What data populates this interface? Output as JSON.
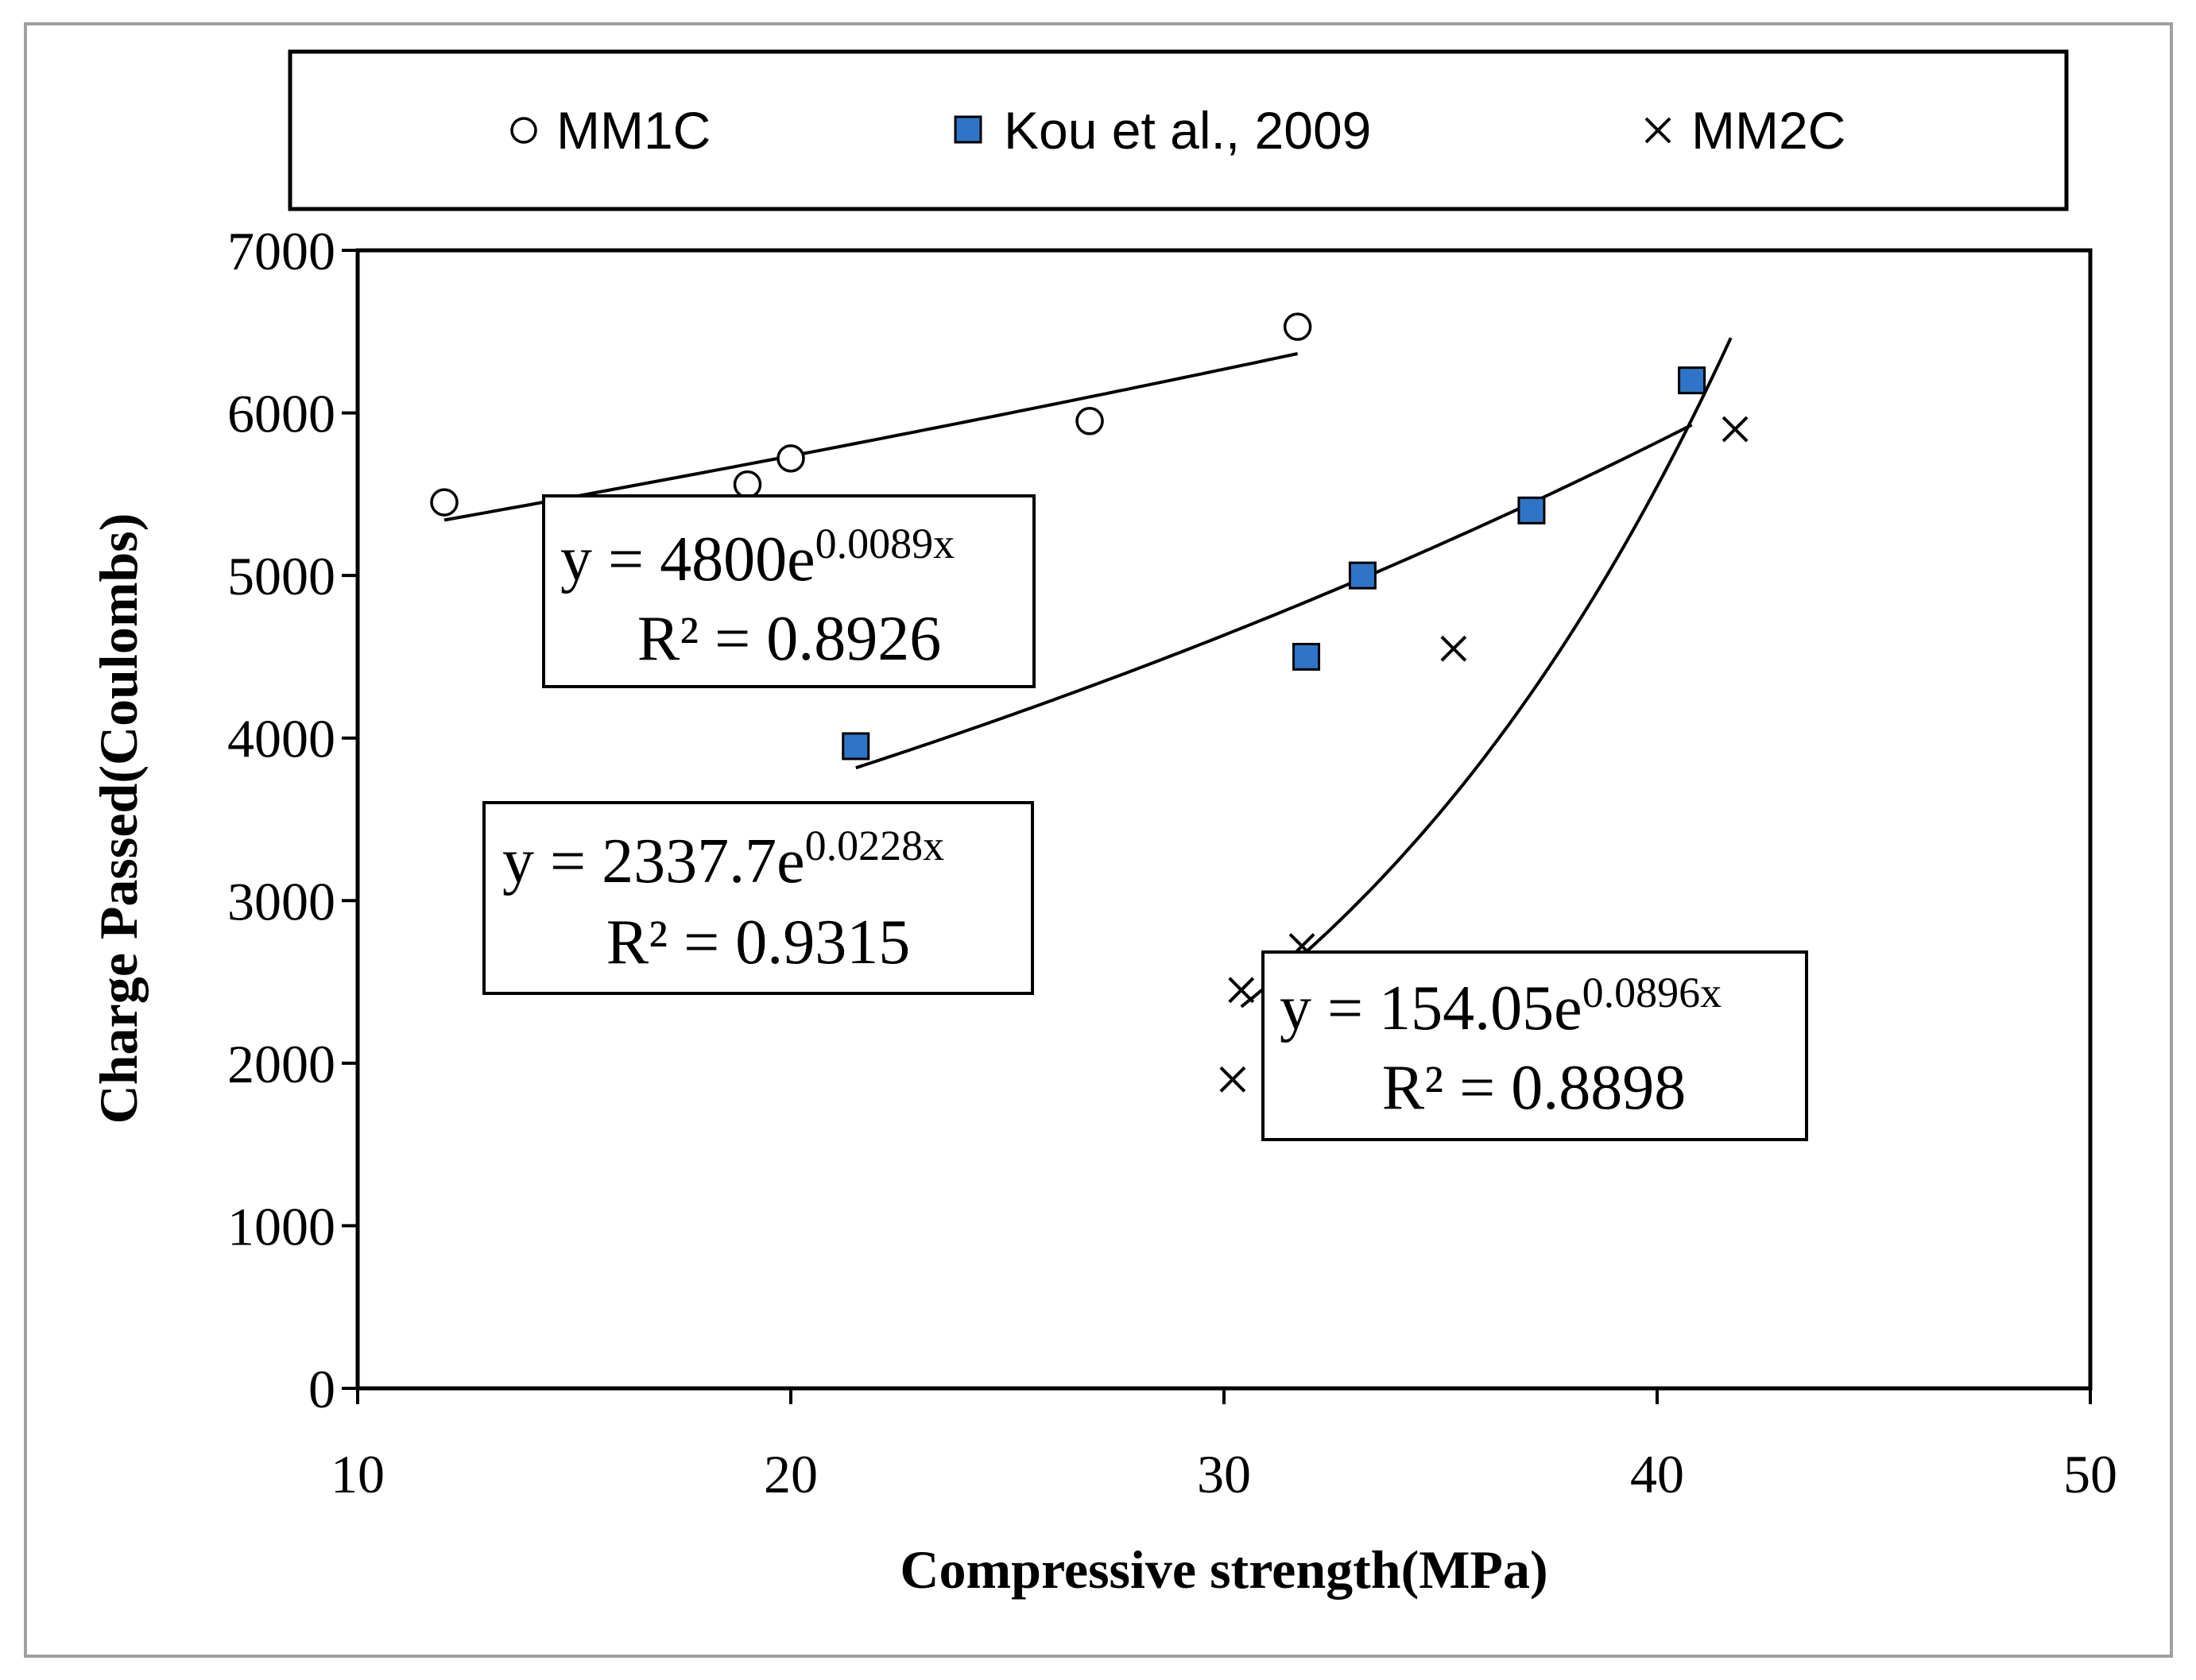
{
  "chart_data": {
    "type": "scatter",
    "xlabel": "Compressive strength(MPa)",
    "ylabel": "Charge Passed(Coulombs)",
    "xlim": [
      10,
      50
    ],
    "ylim": [
      0,
      7000
    ],
    "xticks": [
      10,
      20,
      30,
      40,
      50
    ],
    "yticks": [
      0,
      1000,
      2000,
      3000,
      4000,
      5000,
      6000,
      7000
    ],
    "grid": false,
    "legend_position": "top",
    "series": [
      {
        "name": "MM1C",
        "marker": "open-circle",
        "color": "#000000",
        "points": [
          [
            12,
            5450
          ],
          [
            19,
            5560
          ],
          [
            20,
            5720
          ],
          [
            26.9,
            5950
          ],
          [
            31.7,
            6530
          ]
        ],
        "trendline": {
          "a": 4800,
          "b": 0.0089,
          "x_range": [
            12,
            31.7
          ]
        },
        "equation": {
          "base": "y = 4800e",
          "exponent": "0.0089x",
          "r2": "R² = 0.8926"
        }
      },
      {
        "name": "Kou et al., 2009",
        "marker": "filled-square",
        "color": "#2e75c8",
        "points": [
          [
            21.5,
            3950
          ],
          [
            31.9,
            4500
          ],
          [
            33.2,
            5000
          ],
          [
            37.1,
            5400
          ],
          [
            40.8,
            6200
          ]
        ],
        "trendline": {
          "a": 2337.7,
          "b": 0.0228,
          "x_range": [
            21.5,
            40.8
          ]
        },
        "equation": {
          "base": "y = 2337.7e",
          "exponent": "0.0228x",
          "r2": "R² = 0.9315"
        }
      },
      {
        "name": "MM2C",
        "marker": "cross",
        "color": "#000000",
        "points": [
          [
            30.2,
            1900
          ],
          [
            30.4,
            2450
          ],
          [
            31.8,
            2720
          ],
          [
            35.3,
            4550
          ],
          [
            41.8,
            5900
          ]
        ],
        "trendline": {
          "a": 154.05,
          "b": 0.0896,
          "x_range": [
            30.4,
            41.7
          ]
        },
        "equation": {
          "base": "y = 154.05e",
          "exponent": "0.0896x",
          "r2": "R² = 0.8898"
        }
      }
    ]
  }
}
